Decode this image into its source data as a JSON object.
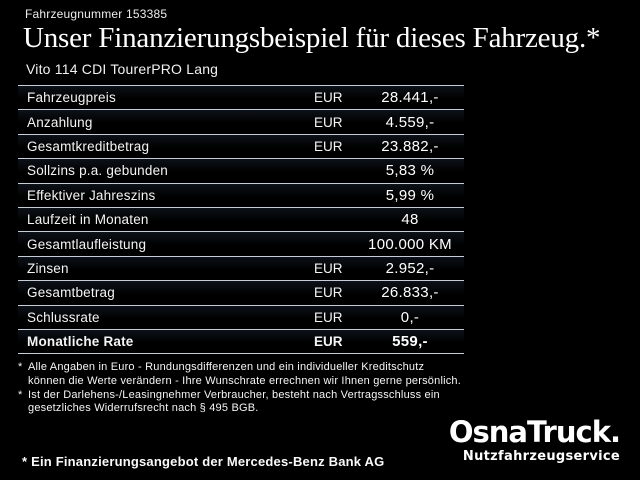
{
  "page": {
    "background_color": "#000000",
    "text_color": "#ffffff",
    "table_line_color": "#c6cdd8"
  },
  "header": {
    "vehicle_number": "Fahrzeugnummer 153385",
    "title": "Unser Finanzierungsbeispiel für dieses Fahrzeug.*",
    "vehicle_model": "Vito 114 CDI TourerPRO Lang"
  },
  "finance_table": {
    "rows": [
      {
        "label": "Fahrzeugpreis",
        "currency": "EUR",
        "value": "28.441,-",
        "bold": false
      },
      {
        "label": "Anzahlung",
        "currency": "EUR",
        "value": "4.559,-",
        "bold": false
      },
      {
        "label": "Gesamtkreditbetrag",
        "currency": "EUR",
        "value": "23.882,-",
        "bold": false
      },
      {
        "label": "Sollzins p.a. gebunden",
        "currency": "",
        "value": "5,83 %",
        "bold": false
      },
      {
        "label": "Effektiver Jahreszins",
        "currency": "",
        "value": "5,99 %",
        "bold": false
      },
      {
        "label": "Laufzeit in Monaten",
        "currency": "",
        "value": "48",
        "bold": false
      },
      {
        "label": "Gesamtlaufleistung",
        "currency": "",
        "value": "100.000 KM",
        "bold": false
      },
      {
        "label": "Zinsen",
        "currency": "EUR",
        "value": "2.952,-",
        "bold": false
      },
      {
        "label": "Gesamtbetrag",
        "currency": "EUR",
        "value": "26.833,-",
        "bold": false
      },
      {
        "label": "Schlussrate",
        "currency": "EUR",
        "value": "0,-",
        "bold": false
      },
      {
        "label": "Monatliche Rate",
        "currency": "EUR",
        "value": "559,-",
        "bold": true
      }
    ]
  },
  "footnotes": [
    {
      "marker": "*",
      "lines": [
        "Alle Angaben in Euro - Rundungsdifferenzen und ein individueller Kreditschutz",
        "können die Werte verändern - Ihre Wunschrate errechnen wir Ihnen gerne persönlich."
      ]
    },
    {
      "marker": "*",
      "lines": [
        "Ist der Darlehens-/Leasingnehmer Verbraucher, besteht nach Vertragsschluss ein",
        "gesetzliches Widerrufsrecht nach § 495 BGB."
      ]
    }
  ],
  "footer": {
    "financing_note": "* Ein Finanzierungsangebot der Mercedes-Benz Bank AG",
    "logo": {
      "name": "OsnaTruck.",
      "tagline": "Nutzfahrzeugservice"
    }
  }
}
